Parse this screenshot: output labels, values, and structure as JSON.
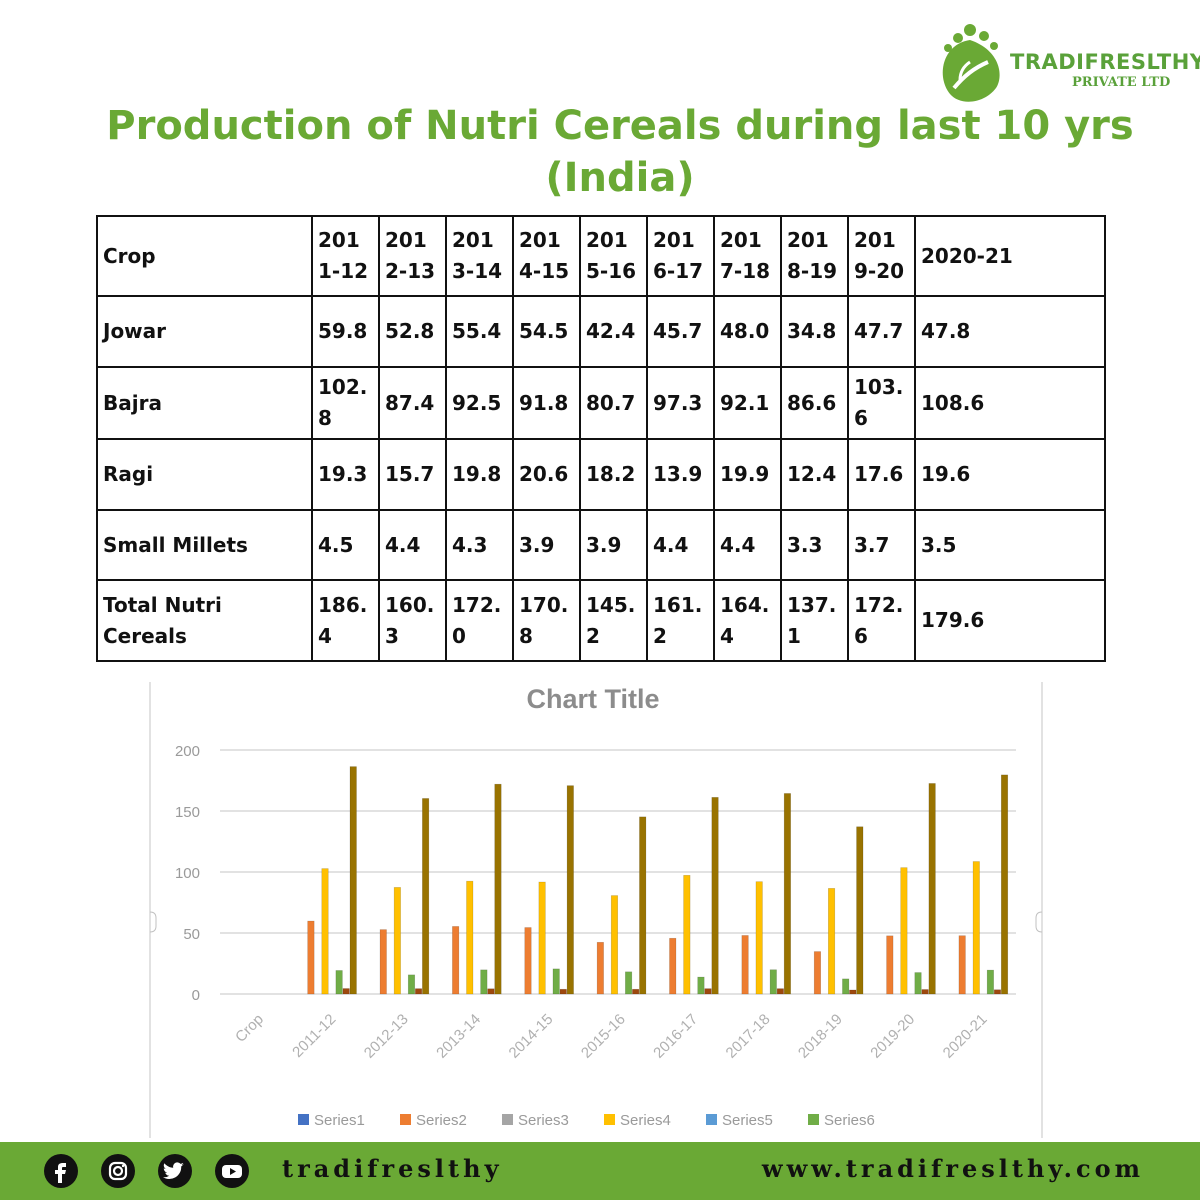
{
  "brand": {
    "name": "TRADIFRESLTHY",
    "sub": "PRIVATE LTD",
    "color": "#5aa13a"
  },
  "title": {
    "line1": "Production of Nutri Cereals during last 10 yrs",
    "line2": "(India)"
  },
  "table": {
    "header": [
      "Crop",
      "2011-12",
      "2012-13",
      "2013-14",
      "2014-15",
      "2015-16",
      "2016-17",
      "2017-18",
      "2018-19",
      "2019-20",
      "2020-21"
    ],
    "rows": [
      [
        "Jowar",
        "59.8",
        "52.8",
        "55.4",
        "54.5",
        "42.4",
        "45.7",
        "48.0",
        "34.8",
        "47.7",
        "47.8"
      ],
      [
        "Bajra",
        "102.8",
        "87.4",
        "92.5",
        "91.8",
        "80.7",
        "97.3",
        "92.1",
        "86.6",
        "103.6",
        "108.6"
      ],
      [
        "Ragi",
        "19.3",
        "15.7",
        "19.8",
        "20.6",
        "18.2",
        "13.9",
        "19.9",
        "12.4",
        "17.6",
        "19.6"
      ],
      [
        "Small Millets",
        "4.5",
        "4.4",
        "4.3",
        "3.9",
        "3.9",
        "4.4",
        "4.4",
        "3.3",
        "3.7",
        "3.5"
      ],
      [
        "Total Nutri Cereals",
        "186.4",
        "160.3",
        "172.0",
        "170.8",
        "145.2",
        "161.2",
        "164.4",
        "137.1",
        "172.6",
        "179.6"
      ]
    ]
  },
  "chart_data": {
    "type": "bar",
    "title": "Chart Title",
    "categories": [
      "Crop",
      "2011-12",
      "2012-13",
      "2013-14",
      "2014-15",
      "2015-16",
      "2016-17",
      "2017-18",
      "2018-19",
      "2019-20",
      "2020-21"
    ],
    "ylim": [
      0,
      200
    ],
    "yticks": [
      "0",
      "50",
      "100",
      "150",
      "200"
    ],
    "grid": true,
    "legend": "bottom",
    "series": [
      {
        "name": "Series1",
        "color": "#4472c4",
        "values": [
          null,
          null,
          null,
          null,
          null,
          null,
          null,
          null,
          null,
          null,
          null
        ]
      },
      {
        "name": "Series2",
        "color": "#ed7d31",
        "values": [
          null,
          59.8,
          52.8,
          55.4,
          54.5,
          42.4,
          45.7,
          48.0,
          34.8,
          47.7,
          47.8
        ]
      },
      {
        "name": "Series3",
        "color": "#a5a5a5",
        "values": [
          null,
          null,
          null,
          null,
          null,
          null,
          null,
          null,
          null,
          null,
          null
        ]
      },
      {
        "name": "Series4",
        "color": "#ffc000",
        "values": [
          null,
          102.8,
          87.4,
          92.5,
          91.8,
          80.7,
          97.3,
          92.1,
          86.6,
          103.6,
          108.6
        ]
      },
      {
        "name": "Series5",
        "color": "#5b9bd5",
        "values": [
          null,
          null,
          null,
          null,
          null,
          null,
          null,
          null,
          null,
          null,
          null
        ]
      },
      {
        "name": "Series6",
        "color": "#70ad47",
        "values": [
          null,
          19.3,
          15.7,
          19.8,
          20.6,
          18.2,
          13.9,
          19.9,
          12.4,
          17.6,
          19.6
        ]
      },
      {
        "color": "#9e480e",
        "values": [
          null,
          4.5,
          4.4,
          4.3,
          3.9,
          3.9,
          4.4,
          4.4,
          3.3,
          3.7,
          3.5
        ]
      },
      {
        "color": "#997300",
        "values": [
          null,
          186.4,
          160.3,
          172.0,
          170.8,
          145.2,
          161.2,
          164.4,
          137.1,
          172.6,
          179.6
        ]
      }
    ]
  },
  "footer": {
    "handle": "tradifreslthy",
    "website": "www.tradifreslthy.com",
    "social_icons": [
      "facebook-icon",
      "instagram-icon",
      "twitter-icon",
      "youtube-icon"
    ]
  }
}
